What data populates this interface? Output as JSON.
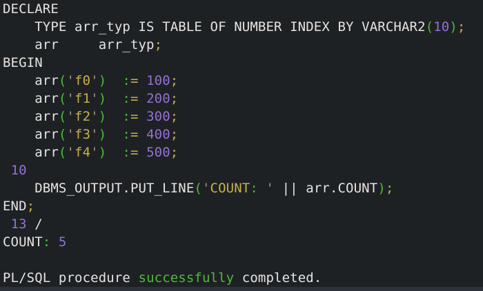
{
  "terminal": {
    "colors": {
      "default": "#e6e4e1",
      "yellow": "#c8b149",
      "green": "#4eba38",
      "purple": "#9471d4",
      "quote": "#9b9884",
      "background": "#1e2124",
      "bottom_bar": "#2c313a"
    },
    "lines": [
      [
        [
          "DECLARE",
          "default"
        ]
      ],
      [
        [
          "    TYPE arr_typ IS TABLE OF NUMBER INDEX BY VARCHAR2",
          "default"
        ],
        [
          "(",
          "green"
        ],
        [
          "10",
          "purple"
        ],
        [
          ")",
          "green"
        ],
        [
          ";",
          "yellow"
        ]
      ],
      [
        [
          "    arr     arr_typ",
          "default"
        ],
        [
          ";",
          "yellow"
        ]
      ],
      [
        [
          "BEGIN",
          "default"
        ]
      ],
      [
        [
          "    arr",
          "default"
        ],
        [
          "(",
          "green"
        ],
        [
          "'",
          "quote"
        ],
        [
          "f0",
          "yellow"
        ],
        [
          "'",
          "quote"
        ],
        [
          ")",
          "green"
        ],
        [
          "  ",
          "default"
        ],
        [
          ":",
          "green"
        ],
        [
          "=",
          "yellow"
        ],
        [
          " ",
          "default"
        ],
        [
          "100",
          "purple"
        ],
        [
          ";",
          "yellow"
        ]
      ],
      [
        [
          "    arr",
          "default"
        ],
        [
          "(",
          "green"
        ],
        [
          "'",
          "quote"
        ],
        [
          "f1",
          "yellow"
        ],
        [
          "'",
          "quote"
        ],
        [
          ")",
          "green"
        ],
        [
          "  ",
          "default"
        ],
        [
          ":",
          "green"
        ],
        [
          "=",
          "yellow"
        ],
        [
          " ",
          "default"
        ],
        [
          "200",
          "purple"
        ],
        [
          ";",
          "yellow"
        ]
      ],
      [
        [
          "    arr",
          "default"
        ],
        [
          "(",
          "green"
        ],
        [
          "'",
          "quote"
        ],
        [
          "f2",
          "yellow"
        ],
        [
          "'",
          "quote"
        ],
        [
          ")",
          "green"
        ],
        [
          "  ",
          "default"
        ],
        [
          ":",
          "green"
        ],
        [
          "=",
          "yellow"
        ],
        [
          " ",
          "default"
        ],
        [
          "300",
          "purple"
        ],
        [
          ";",
          "yellow"
        ]
      ],
      [
        [
          "    arr",
          "default"
        ],
        [
          "(",
          "green"
        ],
        [
          "'",
          "quote"
        ],
        [
          "f3",
          "yellow"
        ],
        [
          "'",
          "quote"
        ],
        [
          ")",
          "green"
        ],
        [
          "  ",
          "default"
        ],
        [
          ":",
          "green"
        ],
        [
          "=",
          "yellow"
        ],
        [
          " ",
          "default"
        ],
        [
          "400",
          "purple"
        ],
        [
          ";",
          "yellow"
        ]
      ],
      [
        [
          "    arr",
          "default"
        ],
        [
          "(",
          "green"
        ],
        [
          "'",
          "quote"
        ],
        [
          "f4",
          "yellow"
        ],
        [
          "'",
          "quote"
        ],
        [
          ")",
          "green"
        ],
        [
          "  ",
          "default"
        ],
        [
          ":",
          "green"
        ],
        [
          "=",
          "yellow"
        ],
        [
          " ",
          "default"
        ],
        [
          "500",
          "purple"
        ],
        [
          ";",
          "yellow"
        ]
      ],
      [
        [
          " ",
          "default"
        ],
        [
          "10",
          "purple"
        ]
      ],
      [
        [
          "    DBMS_OUTPUT.PUT_LINE",
          "default"
        ],
        [
          "(",
          "green"
        ],
        [
          "'",
          "quote"
        ],
        [
          "COUNT",
          "yellow"
        ],
        [
          ":",
          "green"
        ],
        [
          " ",
          "yellow"
        ],
        [
          "'",
          "quote"
        ],
        [
          " || arr.COUNT",
          "default"
        ],
        [
          ")",
          "green"
        ],
        [
          ";",
          "yellow"
        ]
      ],
      [
        [
          "END",
          "default"
        ],
        [
          ";",
          "yellow"
        ]
      ],
      [
        [
          " ",
          "default"
        ],
        [
          "13",
          "purple"
        ],
        [
          " /",
          "default"
        ]
      ],
      [
        [
          "COUNT",
          "default"
        ],
        [
          ":",
          "green"
        ],
        [
          " ",
          "default"
        ],
        [
          "5",
          "purple"
        ]
      ],
      [],
      [
        [
          "PL/SQL procedure ",
          "default"
        ],
        [
          "successfully",
          "green"
        ],
        [
          " completed.",
          "default"
        ]
      ]
    ]
  }
}
